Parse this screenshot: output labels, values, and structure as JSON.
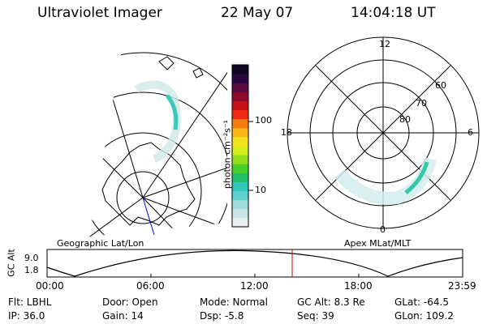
{
  "header": {
    "instrument": "Ultraviolet Imager",
    "date": "22 May 07",
    "time": "14:04:18 UT"
  },
  "colorbar": {
    "unit_label": "photon cm⁻²s⁻¹",
    "ticks": [
      "100",
      "10"
    ],
    "colors": [
      "#e8f1f2",
      "#c7e7e7",
      "#a3dcdc",
      "#5fd0d0",
      "#2ec7b8",
      "#22bf6a",
      "#4bcf2b",
      "#93dd1b",
      "#d7ec1b",
      "#f5e41d",
      "#f8b717",
      "#f47d12",
      "#ee2a15",
      "#c51016",
      "#8f0a2a",
      "#5a0840",
      "#2a0640",
      "#0c0520"
    ]
  },
  "polar": {
    "labels": {
      "top": "12",
      "left": "18",
      "right": "6",
      "bottom": "0"
    },
    "lat_labels": [
      "60",
      "70",
      "80"
    ]
  },
  "panel_labels": {
    "left": "Geographic Lat/Lon",
    "right": "Apex MLat/MLT"
  },
  "altitude_plot": {
    "ylabel": "GC Alt",
    "y_top": "9.0",
    "y_bottom": "1.8",
    "x_ticks": [
      "00:00",
      "06:00",
      "12:00",
      "18:00",
      "23:59"
    ],
    "marker_color": "#cc0000"
  },
  "info": {
    "filter": "Flt: LBHL",
    "ip": "IP: 36.0",
    "door": "Door: Open",
    "gain": "Gain: 14",
    "mode": "Mode: Normal",
    "dsp": "Dsp:   -5.8",
    "gc_alt": "GC Alt: 8.3 Re",
    "seq": "Seq: 39",
    "glat": "GLat: -64.5",
    "glon": "GLon: 109.2"
  }
}
